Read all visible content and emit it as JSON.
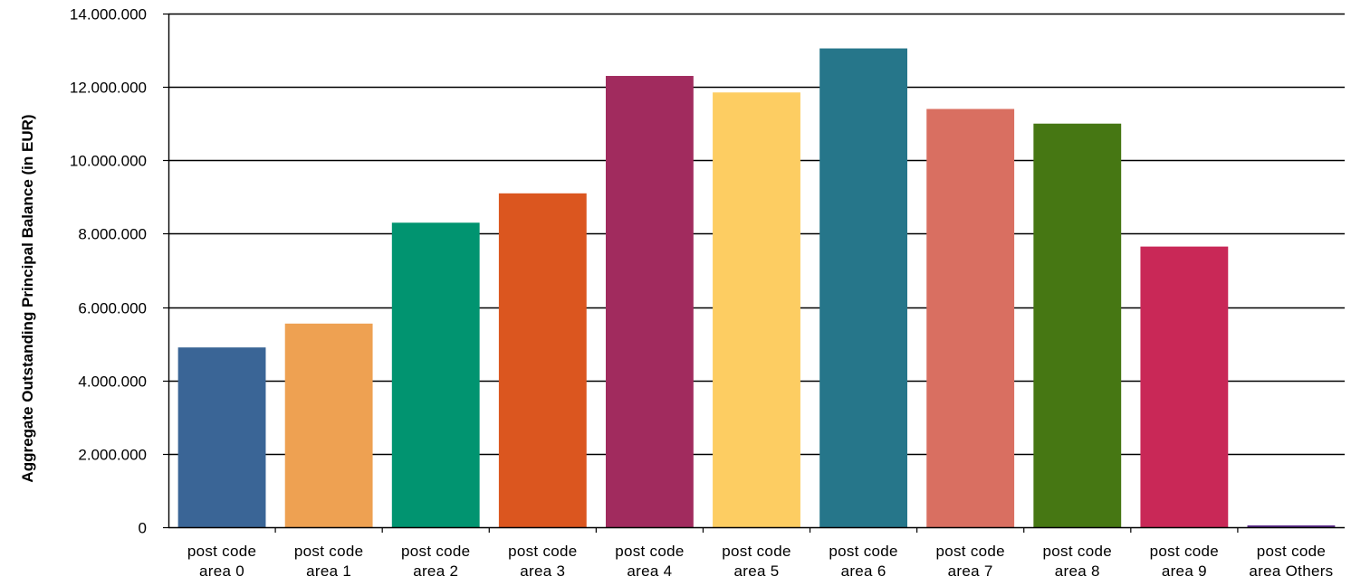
{
  "chart_data": {
    "type": "bar",
    "title": "",
    "xlabel": "",
    "ylabel": "Aggregate Outstanding Principal Balance (in EUR)",
    "ylim": [
      0,
      14000000
    ],
    "yticks": [
      0,
      2000000,
      4000000,
      6000000,
      8000000,
      10000000,
      12000000,
      14000000
    ],
    "ytick_labels": [
      "0",
      "2.000.000",
      "4.000.000",
      "6.000.000",
      "8.000.000",
      "10.000.000",
      "12.000.000",
      "14.000.000"
    ],
    "grid": true,
    "legend": "none",
    "categories": [
      [
        "post code",
        "area 0"
      ],
      [
        "post code",
        "area 1"
      ],
      [
        "post code",
        "area 2"
      ],
      [
        "post code",
        "area 3"
      ],
      [
        "post code",
        "area 4"
      ],
      [
        "post code",
        "area 5"
      ],
      [
        "post code",
        "area 6"
      ],
      [
        "post code",
        "area 7"
      ],
      [
        "post code",
        "area 8"
      ],
      [
        "post code",
        "area 9"
      ],
      [
        "post code",
        "area Others"
      ]
    ],
    "values": [
      4900000,
      5550000,
      8300000,
      9100000,
      12300000,
      11850000,
      13050000,
      11400000,
      11000000,
      7650000,
      50000
    ],
    "colors": [
      "#3a6596",
      "#eea152",
      "#019470",
      "#db561f",
      "#a12b5e",
      "#fdcd62",
      "#26768a",
      "#d96f61",
      "#467713",
      "#c92857",
      "#5b2c8a"
    ]
  }
}
